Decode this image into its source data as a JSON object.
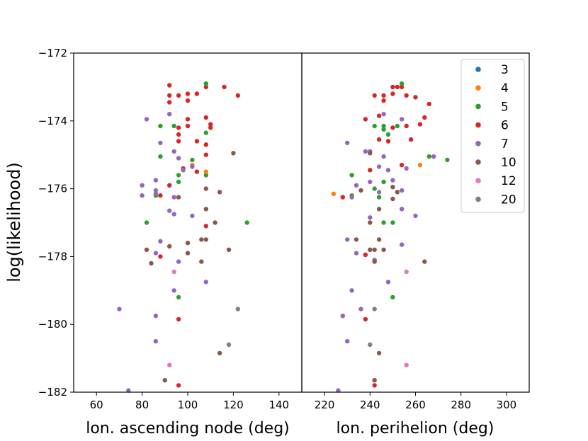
{
  "chart_data": {
    "type": "scatter",
    "ylabel": "log(likelihood)",
    "ylim": [
      -182,
      -172
    ],
    "yticks": [
      -182,
      -180,
      -178,
      -176,
      -174,
      -172
    ],
    "ytick_labels": [
      "−182",
      "−180",
      "−178",
      "−176",
      "−174",
      "−172"
    ],
    "legend_position": "top-right",
    "series": [
      {
        "name": "3",
        "color": "#1f77b4"
      },
      {
        "name": "4",
        "color": "#ff7f0e"
      },
      {
        "name": "5",
        "color": "#2ca02c"
      },
      {
        "name": "6",
        "color": "#d62728"
      },
      {
        "name": "7",
        "color": "#9467bd"
      },
      {
        "name": "10",
        "color": "#8c564b"
      },
      {
        "name": "12",
        "color": "#e377c2"
      },
      {
        "name": "20",
        "color": "#7f7f7f"
      }
    ],
    "panels": [
      {
        "xlabel": "lon. ascending node (deg)",
        "xlim": [
          50,
          150
        ],
        "xticks": [
          60,
          80,
          100,
          120,
          140
        ],
        "points": [
          {
            "s": "6",
            "x": 92,
            "y": -172.95
          },
          {
            "s": "6",
            "x": 92,
            "y": -173.25
          },
          {
            "s": "6",
            "x": 92,
            "y": -173.45
          },
          {
            "s": "6",
            "x": 96,
            "y": -173.25
          },
          {
            "s": "6",
            "x": 100,
            "y": -173.2
          },
          {
            "s": "6",
            "x": 100,
            "y": -173.4
          },
          {
            "s": "6",
            "x": 104,
            "y": -173.2
          },
          {
            "s": "6",
            "x": 108,
            "y": -173.0
          },
          {
            "s": "6",
            "x": 116,
            "y": -173.0
          },
          {
            "s": "6",
            "x": 122,
            "y": -173.25
          },
          {
            "s": "6",
            "x": 108,
            "y": -173.9
          },
          {
            "s": "6",
            "x": 100,
            "y": -173.95
          },
          {
            "s": "6",
            "x": 96,
            "y": -174.2
          },
          {
            "s": "6",
            "x": 96,
            "y": -174.4
          },
          {
            "s": "6",
            "x": 100,
            "y": -174.15
          },
          {
            "s": "6",
            "x": 110,
            "y": -174.1
          },
          {
            "s": "6",
            "x": 110,
            "y": -174.2
          },
          {
            "s": "6",
            "x": 104,
            "y": -174.6
          },
          {
            "s": "6",
            "x": 96,
            "y": -174.6
          },
          {
            "s": "6",
            "x": 108,
            "y": -174.7
          },
          {
            "s": "6",
            "x": 108,
            "y": -175.0
          },
          {
            "s": "6",
            "x": 98,
            "y": -175.4
          },
          {
            "s": "6",
            "x": 104,
            "y": -175.5
          },
          {
            "s": "6",
            "x": 92,
            "y": -175.9
          },
          {
            "s": "6",
            "x": 88,
            "y": -176.2
          },
          {
            "s": "6",
            "x": 108,
            "y": -177.1
          },
          {
            "s": "6",
            "x": 88,
            "y": -178.0
          },
          {
            "s": "6",
            "x": 96,
            "y": -179.85
          },
          {
            "s": "6",
            "x": 96,
            "y": -181.8
          },
          {
            "s": "5",
            "x": 108,
            "y": -172.9
          },
          {
            "s": "5",
            "x": 88,
            "y": -174.15
          },
          {
            "s": "5",
            "x": 94,
            "y": -174.15
          },
          {
            "s": "5",
            "x": 108,
            "y": -174.35
          },
          {
            "s": "5",
            "x": 88,
            "y": -175.05
          },
          {
            "s": "5",
            "x": 102,
            "y": -175.15
          },
          {
            "s": "5",
            "x": 96,
            "y": -175.6
          },
          {
            "s": "5",
            "x": 108,
            "y": -175.6
          },
          {
            "s": "5",
            "x": 96,
            "y": -175.8
          },
          {
            "s": "5",
            "x": 86,
            "y": -176.2
          },
          {
            "s": "5",
            "x": 82,
            "y": -177.0
          },
          {
            "s": "5",
            "x": 126,
            "y": -177.0
          },
          {
            "s": "5",
            "x": 96,
            "y": -179.2
          },
          {
            "s": "4",
            "x": 102,
            "y": -175.3
          },
          {
            "s": "4",
            "x": 108,
            "y": -175.5
          },
          {
            "s": "7",
            "x": 82,
            "y": -173.95
          },
          {
            "s": "7",
            "x": 92,
            "y": -173.8
          },
          {
            "s": "7",
            "x": 88,
            "y": -174.65
          },
          {
            "s": "7",
            "x": 94,
            "y": -174.9
          },
          {
            "s": "7",
            "x": 96,
            "y": -175.1
          },
          {
            "s": "7",
            "x": 98,
            "y": -175.45
          },
          {
            "s": "7",
            "x": 102,
            "y": -175.35
          },
          {
            "s": "7",
            "x": 86,
            "y": -175.75
          },
          {
            "s": "7",
            "x": 80,
            "y": -175.9
          },
          {
            "s": "7",
            "x": 80,
            "y": -176.2
          },
          {
            "s": "7",
            "x": 86,
            "y": -176.05
          },
          {
            "s": "7",
            "x": 86,
            "y": -176.15
          },
          {
            "s": "7",
            "x": 94,
            "y": -176.25
          },
          {
            "s": "7",
            "x": 92,
            "y": -176.65
          },
          {
            "s": "7",
            "x": 94,
            "y": -176.75
          },
          {
            "s": "7",
            "x": 102,
            "y": -176.8
          },
          {
            "s": "7",
            "x": 88,
            "y": -177.55
          },
          {
            "s": "7",
            "x": 86,
            "y": -177.9
          },
          {
            "s": "7",
            "x": 96,
            "y": -178.15
          },
          {
            "s": "7",
            "x": 108,
            "y": -178.75
          },
          {
            "s": "7",
            "x": 94,
            "y": -179.0
          },
          {
            "s": "7",
            "x": 70,
            "y": -179.55
          },
          {
            "s": "7",
            "x": 86,
            "y": -179.75
          },
          {
            "s": "7",
            "x": 86,
            "y": -180.5
          },
          {
            "s": "7",
            "x": 74,
            "y": -181.95
          },
          {
            "s": "10",
            "x": 120,
            "y": -174.95
          },
          {
            "s": "10",
            "x": 96,
            "y": -176.25
          },
          {
            "s": "10",
            "x": 108,
            "y": -176.0
          },
          {
            "s": "10",
            "x": 114,
            "y": -176.1
          },
          {
            "s": "10",
            "x": 108,
            "y": -176.6
          },
          {
            "s": "10",
            "x": 112,
            "y": -177.0
          },
          {
            "s": "10",
            "x": 100,
            "y": -177.6
          },
          {
            "s": "10",
            "x": 106,
            "y": -177.5
          },
          {
            "s": "10",
            "x": 108,
            "y": -177.5
          },
          {
            "s": "10",
            "x": 82,
            "y": -177.8
          },
          {
            "s": "10",
            "x": 92,
            "y": -177.7
          },
          {
            "s": "10",
            "x": 100,
            "y": -177.9
          },
          {
            "s": "10",
            "x": 118,
            "y": -177.8
          },
          {
            "s": "10",
            "x": 84,
            "y": -178.2
          },
          {
            "s": "10",
            "x": 106,
            "y": -178.15
          },
          {
            "s": "10",
            "x": 114,
            "y": -180.85
          },
          {
            "s": "10",
            "x": 90,
            "y": -181.65
          },
          {
            "s": "12",
            "x": 94,
            "y": -178.45
          },
          {
            "s": "12",
            "x": 92,
            "y": -181.2
          },
          {
            "s": "20",
            "x": 122,
            "y": -179.55
          },
          {
            "s": "20",
            "x": 118,
            "y": -180.6
          }
        ]
      },
      {
        "xlabel": "lon. perihelion (deg)",
        "xlim": [
          210,
          310
        ],
        "xticks": [
          220,
          240,
          260,
          280,
          300
        ],
        "points": [
          {
            "s": "6",
            "x": 242,
            "y": -173.25
          },
          {
            "s": "6",
            "x": 246,
            "y": -173.25
          },
          {
            "s": "6",
            "x": 246,
            "y": -173.4
          },
          {
            "s": "6",
            "x": 250,
            "y": -173.0
          },
          {
            "s": "6",
            "x": 252,
            "y": -173.0
          },
          {
            "s": "6",
            "x": 254,
            "y": -173.0
          },
          {
            "s": "6",
            "x": 250,
            "y": -173.2
          },
          {
            "s": "6",
            "x": 256,
            "y": -173.25
          },
          {
            "s": "6",
            "x": 260,
            "y": -173.3
          },
          {
            "s": "6",
            "x": 266,
            "y": -173.5
          },
          {
            "s": "6",
            "x": 238,
            "y": -173.95
          },
          {
            "s": "6",
            "x": 244,
            "y": -173.85
          },
          {
            "s": "6",
            "x": 264,
            "y": -173.9
          },
          {
            "s": "6",
            "x": 250,
            "y": -174.2
          },
          {
            "s": "6",
            "x": 256,
            "y": -174.15
          },
          {
            "s": "6",
            "x": 262,
            "y": -174.1
          },
          {
            "s": "6",
            "x": 244,
            "y": -174.55
          },
          {
            "s": "6",
            "x": 248,
            "y": -174.6
          },
          {
            "s": "6",
            "x": 258,
            "y": -174.55
          },
          {
            "s": "6",
            "x": 254,
            "y": -175.3
          },
          {
            "s": "6",
            "x": 240,
            "y": -175.45
          },
          {
            "s": "6",
            "x": 228,
            "y": -176.25
          },
          {
            "s": "6",
            "x": 238,
            "y": -177.95
          },
          {
            "s": "6",
            "x": 238,
            "y": -179.85
          },
          {
            "s": "6",
            "x": 242,
            "y": -181.8
          },
          {
            "s": "5",
            "x": 254,
            "y": -172.9
          },
          {
            "s": "5",
            "x": 242,
            "y": -174.15
          },
          {
            "s": "5",
            "x": 246,
            "y": -174.15
          },
          {
            "s": "5",
            "x": 252,
            "y": -174.15
          },
          {
            "s": "5",
            "x": 246,
            "y": -174.25
          },
          {
            "s": "5",
            "x": 248,
            "y": -174.4
          },
          {
            "s": "5",
            "x": 266,
            "y": -175.05
          },
          {
            "s": "5",
            "x": 274,
            "y": -175.15
          },
          {
            "s": "5",
            "x": 232,
            "y": -175.6
          },
          {
            "s": "5",
            "x": 246,
            "y": -175.8
          },
          {
            "s": "5",
            "x": 242,
            "y": -176.0
          },
          {
            "s": "5",
            "x": 232,
            "y": -176.2
          },
          {
            "s": "5",
            "x": 244,
            "y": -176.25
          },
          {
            "s": "5",
            "x": 246,
            "y": -177.0
          },
          {
            "s": "5",
            "x": 250,
            "y": -177.0
          },
          {
            "s": "5",
            "x": 250,
            "y": -179.2
          },
          {
            "s": "4",
            "x": 224,
            "y": -176.15
          },
          {
            "s": "4",
            "x": 262,
            "y": -175.3
          },
          {
            "s": "7",
            "x": 246,
            "y": -173.8
          },
          {
            "s": "7",
            "x": 254,
            "y": -173.95
          },
          {
            "s": "7",
            "x": 230,
            "y": -174.65
          },
          {
            "s": "7",
            "x": 238,
            "y": -174.9
          },
          {
            "s": "7",
            "x": 240,
            "y": -174.9
          },
          {
            "s": "7",
            "x": 246,
            "y": -175.05
          },
          {
            "s": "7",
            "x": 244,
            "y": -175.35
          },
          {
            "s": "7",
            "x": 248,
            "y": -175.45
          },
          {
            "s": "7",
            "x": 256,
            "y": -175.4
          },
          {
            "s": "7",
            "x": 232,
            "y": -176.25
          },
          {
            "s": "7",
            "x": 234,
            "y": -175.9
          },
          {
            "s": "7",
            "x": 240,
            "y": -175.8
          },
          {
            "s": "7",
            "x": 244,
            "y": -176.1
          },
          {
            "s": "7",
            "x": 250,
            "y": -175.75
          },
          {
            "s": "7",
            "x": 254,
            "y": -176.05
          },
          {
            "s": "7",
            "x": 254,
            "y": -176.6
          },
          {
            "s": "7",
            "x": 260,
            "y": -176.8
          },
          {
            "s": "7",
            "x": 240,
            "y": -176.85
          },
          {
            "s": "7",
            "x": 230,
            "y": -177.5
          },
          {
            "s": "7",
            "x": 234,
            "y": -177.9
          },
          {
            "s": "7",
            "x": 242,
            "y": -178.1
          },
          {
            "s": "7",
            "x": 254,
            "y": -177.65
          },
          {
            "s": "7",
            "x": 248,
            "y": -178.75
          },
          {
            "s": "7",
            "x": 232,
            "y": -179.0
          },
          {
            "s": "7",
            "x": 236,
            "y": -179.55
          },
          {
            "s": "7",
            "x": 228,
            "y": -179.75
          },
          {
            "s": "7",
            "x": 230,
            "y": -180.5
          },
          {
            "s": "7",
            "x": 226,
            "y": -181.95
          },
          {
            "s": "7",
            "x": 268,
            "y": -175.05
          },
          {
            "s": "10",
            "x": 240,
            "y": -174.95
          },
          {
            "s": "10",
            "x": 250,
            "y": -175.95
          },
          {
            "s": "10",
            "x": 236,
            "y": -176.05
          },
          {
            "s": "10",
            "x": 252,
            "y": -176.1
          },
          {
            "s": "10",
            "x": 250,
            "y": -176.3
          },
          {
            "s": "10",
            "x": 244,
            "y": -176.6
          },
          {
            "s": "10",
            "x": 240,
            "y": -177.0
          },
          {
            "s": "10",
            "x": 234,
            "y": -177.5
          },
          {
            "s": "10",
            "x": 244,
            "y": -177.5
          },
          {
            "s": "10",
            "x": 240,
            "y": -177.8
          },
          {
            "s": "10",
            "x": 242,
            "y": -177.8
          },
          {
            "s": "10",
            "x": 246,
            "y": -177.8
          },
          {
            "s": "10",
            "x": 242,
            "y": -178.15
          },
          {
            "s": "10",
            "x": 264,
            "y": -178.15
          },
          {
            "s": "10",
            "x": 244,
            "y": -180.85
          },
          {
            "s": "10",
            "x": 242,
            "y": -181.65
          },
          {
            "s": "12",
            "x": 256,
            "y": -178.45
          },
          {
            "s": "12",
            "x": 256,
            "y": -181.2
          },
          {
            "s": "20",
            "x": 242,
            "y": -179.55
          },
          {
            "s": "20",
            "x": 240,
            "y": -180.6
          }
        ]
      }
    ]
  }
}
